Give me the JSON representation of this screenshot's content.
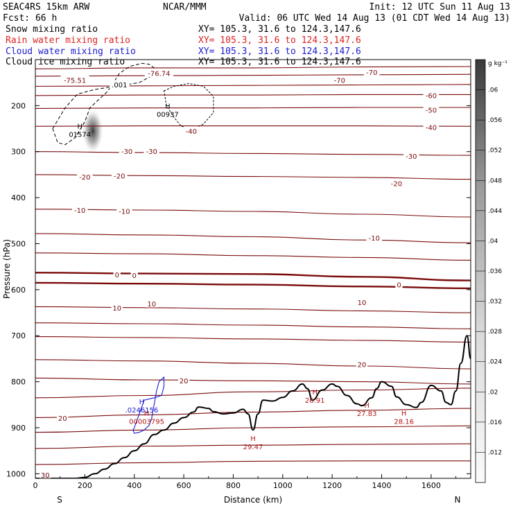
{
  "header": {
    "model": "SEAC4RS 15km ARW",
    "center": "NCAR/MMM",
    "init": "Init: 12 UTC Sun 11 Aug 13",
    "forecast": "Fcst:   66 h",
    "valid": "Valid: 06 UTC Wed 14 Aug 13 (01 CDT Wed 14 Aug 13)"
  },
  "fields": [
    {
      "name": "Snow mixing ratio",
      "color": "#000000",
      "cross": "XY= 105.3, 31.6 to 124.3,147.6"
    },
    {
      "name": "Rain water mixing ratio",
      "color": "#dd2222",
      "cross": "XY= 105.3, 31.6 to 124.3,147.6"
    },
    {
      "name": "Cloud water mixing ratio",
      "color": "#1a1ad0",
      "cross": "XY= 105.3, 31.6 to 124.3,147.6"
    },
    {
      "name": "Cloud ice mixing ratio",
      "color": "#000000",
      "cross": "XY= 105.3, 31.6 to 124.3,147.6"
    }
  ],
  "colorbar": {
    "unit": "g kg⁻¹",
    "ticks": [
      ".012",
      ".016",
      ".02",
      ".024",
      ".028",
      ".032",
      ".036",
      ".04",
      ".044",
      ".048",
      ".052",
      ".056",
      ".06"
    ],
    "min": 0.008,
    "max": 0.064
  },
  "colors": {
    "temperature": "#7a0a0a",
    "zero_isotherm": "#7a0a0a",
    "terrain": "#000000",
    "cloud_water": "#1a1ad0",
    "rain_labels": "#b01818"
  },
  "chart_data": {
    "type": "line",
    "xlabel": "Distance (km)",
    "ylabel": "Pressure (hPa)",
    "xlim": [
      0,
      1760
    ],
    "ylim": [
      1010,
      100
    ],
    "x_ticks": [
      0,
      200,
      400,
      600,
      800,
      1000,
      1200,
      1400,
      1600
    ],
    "y_ticks": [
      200,
      300,
      400,
      500,
      600,
      700,
      800,
      900,
      1000
    ],
    "left_end_label": "S",
    "right_end_label": "N",
    "terrain": {
      "x": [
        0,
        20,
        60,
        120,
        160,
        200,
        240,
        280,
        320,
        360,
        400,
        440,
        480,
        520,
        560,
        600,
        640,
        660,
        700,
        720,
        760,
        800,
        840,
        860,
        880,
        900,
        920,
        960,
        1000,
        1040,
        1080,
        1100,
        1120,
        1160,
        1200,
        1220,
        1260,
        1300,
        1320,
        1360,
        1380,
        1400,
        1440,
        1460,
        1500,
        1540,
        1560,
        1600,
        1640,
        1660,
        1680,
        1700,
        1720,
        1745,
        1760
      ],
      "p": [
        1010,
        1010,
        1010,
        1010,
        1010,
        1008,
        1000,
        990,
        978,
        965,
        950,
        935,
        915,
        905,
        890,
        878,
        866,
        855,
        858,
        865,
        870,
        868,
        860,
        870,
        905,
        870,
        840,
        842,
        834,
        820,
        805,
        815,
        840,
        818,
        805,
        810,
        830,
        848,
        852,
        835,
        815,
        800,
        810,
        833,
        850,
        856,
        845,
        808,
        820,
        845,
        850,
        820,
        760,
        700,
        750
      ]
    },
    "isotherms": [
      {
        "T": -80,
        "p": [
          120,
          118,
          118,
          116,
          115
        ]
      },
      {
        "T": -75,
        "p": [
          136,
          135,
          134,
          133,
          132
        ]
      },
      {
        "T": -70,
        "p": [
          158,
          157,
          156,
          155,
          154
        ]
      },
      {
        "T": -60,
        "p": [
          178,
          177,
          177,
          176,
          176
        ]
      },
      {
        "T": -50,
        "p": [
          206,
          205,
          205,
          204,
          204
        ]
      },
      {
        "T": -40,
        "p": [
          245,
          244,
          244,
          244,
          245
        ]
      },
      {
        "T": -30,
        "p": [
          300,
          302,
          304,
          306,
          308
        ]
      },
      {
        "T": -20,
        "p": [
          350,
          352,
          354,
          356,
          360
        ]
      },
      {
        "T": -10,
        "p": [
          425,
          427,
          430,
          436,
          442
        ]
      },
      {
        "T": -10,
        "p": [
          478,
          481,
          485,
          492,
          498
        ]
      },
      {
        "T": -10,
        "p": [
          520,
          522,
          526,
          530,
          536
        ]
      },
      {
        "T": 0,
        "p": [
          563,
          565,
          566,
          572,
          580
        ]
      },
      {
        "T": 0,
        "p": [
          585,
          587,
          589,
          593,
          597
        ]
      },
      {
        "T": 10,
        "p": [
          637,
          639,
          642,
          646,
          650
        ]
      },
      {
        "T": 10,
        "p": [
          672,
          674,
          677,
          681,
          685
        ]
      },
      {
        "T": 10,
        "p": [
          702,
          704,
          707,
          710,
          714
        ]
      },
      {
        "T": 20,
        "p": [
          752,
          755,
          760,
          766,
          772
        ]
      },
      {
        "T": 20,
        "p": [
          792,
          796,
          798,
          800,
          805
        ]
      },
      {
        "T": 20,
        "p": [
          835,
          830,
          822,
          818,
          814
        ]
      },
      {
        "T": 30,
        "p": [
          878,
          872,
          866,
          862,
          858
        ]
      },
      {
        "T": 30,
        "p": [
          910,
          905,
          900,
          898,
          896
        ]
      },
      {
        "T": 30,
        "p": [
          945,
          940,
          938,
          936,
          935
        ]
      },
      {
        "T": 30,
        "p": [
          980,
          976,
          973,
          972,
          972
        ]
      }
    ],
    "contour_x": [
      0,
      440,
      880,
      1320,
      1760
    ],
    "isotherm_labels": [
      {
        "text": "-75.51",
        "x": 160,
        "p": 145
      },
      {
        "text": "-76.74",
        "x": 500,
        "p": 130
      },
      {
        "text": "-70",
        "x": 1230,
        "p": 145
      },
      {
        "text": "-70",
        "x": 1360,
        "p": 128
      },
      {
        "text": "-60",
        "x": 1600,
        "p": 178
      },
      {
        "text": "-50",
        "x": 1600,
        "p": 210
      },
      {
        "text": "-40",
        "x": 1600,
        "p": 248
      },
      {
        "text": "-40",
        "x": 630,
        "p": 256
      },
      {
        "text": "-30",
        "x": 370,
        "p": 300
      },
      {
        "text": "-30",
        "x": 470,
        "p": 300
      },
      {
        "text": "-30",
        "x": 1520,
        "p": 310
      },
      {
        "text": "-20",
        "x": 200,
        "p": 355
      },
      {
        "text": "-20",
        "x": 340,
        "p": 353
      },
      {
        "text": "-20",
        "x": 1460,
        "p": 370
      },
      {
        "text": "-10",
        "x": 180,
        "p": 428
      },
      {
        "text": "-10",
        "x": 360,
        "p": 430
      },
      {
        "text": "-10",
        "x": 1370,
        "p": 488
      },
      {
        "text": "0",
        "x": 330,
        "p": 568
      },
      {
        "text": "0",
        "x": 400,
        "p": 569
      },
      {
        "text": "0",
        "x": 1470,
        "p": 590
      },
      {
        "text": "10",
        "x": 330,
        "p": 640
      },
      {
        "text": "10",
        "x": 470,
        "p": 631
      },
      {
        "text": "10",
        "x": 1320,
        "p": 628
      },
      {
        "text": "20",
        "x": 600,
        "p": 798
      },
      {
        "text": "20",
        "x": 110,
        "p": 880
      },
      {
        "text": "20",
        "x": 1320,
        "p": 763
      },
      {
        "text": "30",
        "x": 40,
        "p": 1003
      }
    ],
    "snow_contour": {
      "value": ".001",
      "x": [
        70,
        120,
        170,
        240,
        300,
        360,
        420,
        470,
        480,
        460,
        430,
        380,
        340,
        310,
        290,
        260,
        220,
        200,
        160,
        120,
        90,
        70
      ],
      "p": [
        250,
        205,
        175,
        165,
        160,
        155,
        150,
        135,
        118,
        110,
        108,
        115,
        130,
        155,
        170,
        185,
        205,
        235,
        270,
        285,
        280,
        250
      ]
    },
    "snow_max": {
      "label": "H",
      "value": "01574",
      "x": 180,
      "p": 256
    },
    "ice_contour": {
      "x": [
        520,
        560,
        620,
        680,
        720,
        720,
        680,
        640,
        590,
        560,
        530,
        520
      ],
      "p": [
        168,
        158,
        152,
        158,
        180,
        215,
        240,
        250,
        245,
        225,
        200,
        168
      ]
    },
    "ice_max": {
      "label": "H",
      "value": "00937",
      "x": 535,
      "p": 212
    },
    "cloud_water_contour": {
      "x": [
        400,
        420,
        440,
        480,
        510,
        520,
        520,
        500,
        490,
        480,
        470,
        460,
        440,
        420,
        400,
        395,
        400
      ],
      "p": [
        900,
        870,
        840,
        835,
        830,
        810,
        790,
        800,
        820,
        850,
        880,
        895,
        905,
        910,
        912,
        905,
        900
      ]
    },
    "cloud_water_max": {
      "label": "H",
      "value": ".0246156",
      "x": 430,
      "p": 855
    },
    "rain_max_labels": [
      {
        "label": "H",
        "value": "00003795",
        "x": 450,
        "p": 880
      },
      {
        "label": "H",
        "value": "29.47",
        "x": 880,
        "p": 935
      },
      {
        "label": "H",
        "value": "26.91",
        "x": 1130,
        "p": 834
      },
      {
        "label": "H",
        "value": "27.83",
        "x": 1340,
        "p": 862
      },
      {
        "label": "H",
        "value": "28.16",
        "x": 1490,
        "p": 880
      }
    ],
    "shading": {
      "value_max": 0.064,
      "x": 232,
      "p": 255
    }
  }
}
